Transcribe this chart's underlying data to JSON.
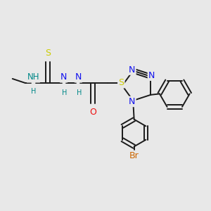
{
  "bg_color": "#e8e8e8",
  "bond_color": "#1a1a1a",
  "bond_width": 1.4,
  "fig_width": 3.0,
  "fig_height": 3.0,
  "dpi": 100,
  "xlim": [
    0.0,
    1.0
  ],
  "ylim": [
    0.0,
    1.0
  ],
  "colors": {
    "N": "#1010ee",
    "O": "#ee1010",
    "S": "#cccc00",
    "Br": "#cc6600",
    "NH": "#008888",
    "H": "#008888",
    "C": "#1a1a1a"
  }
}
